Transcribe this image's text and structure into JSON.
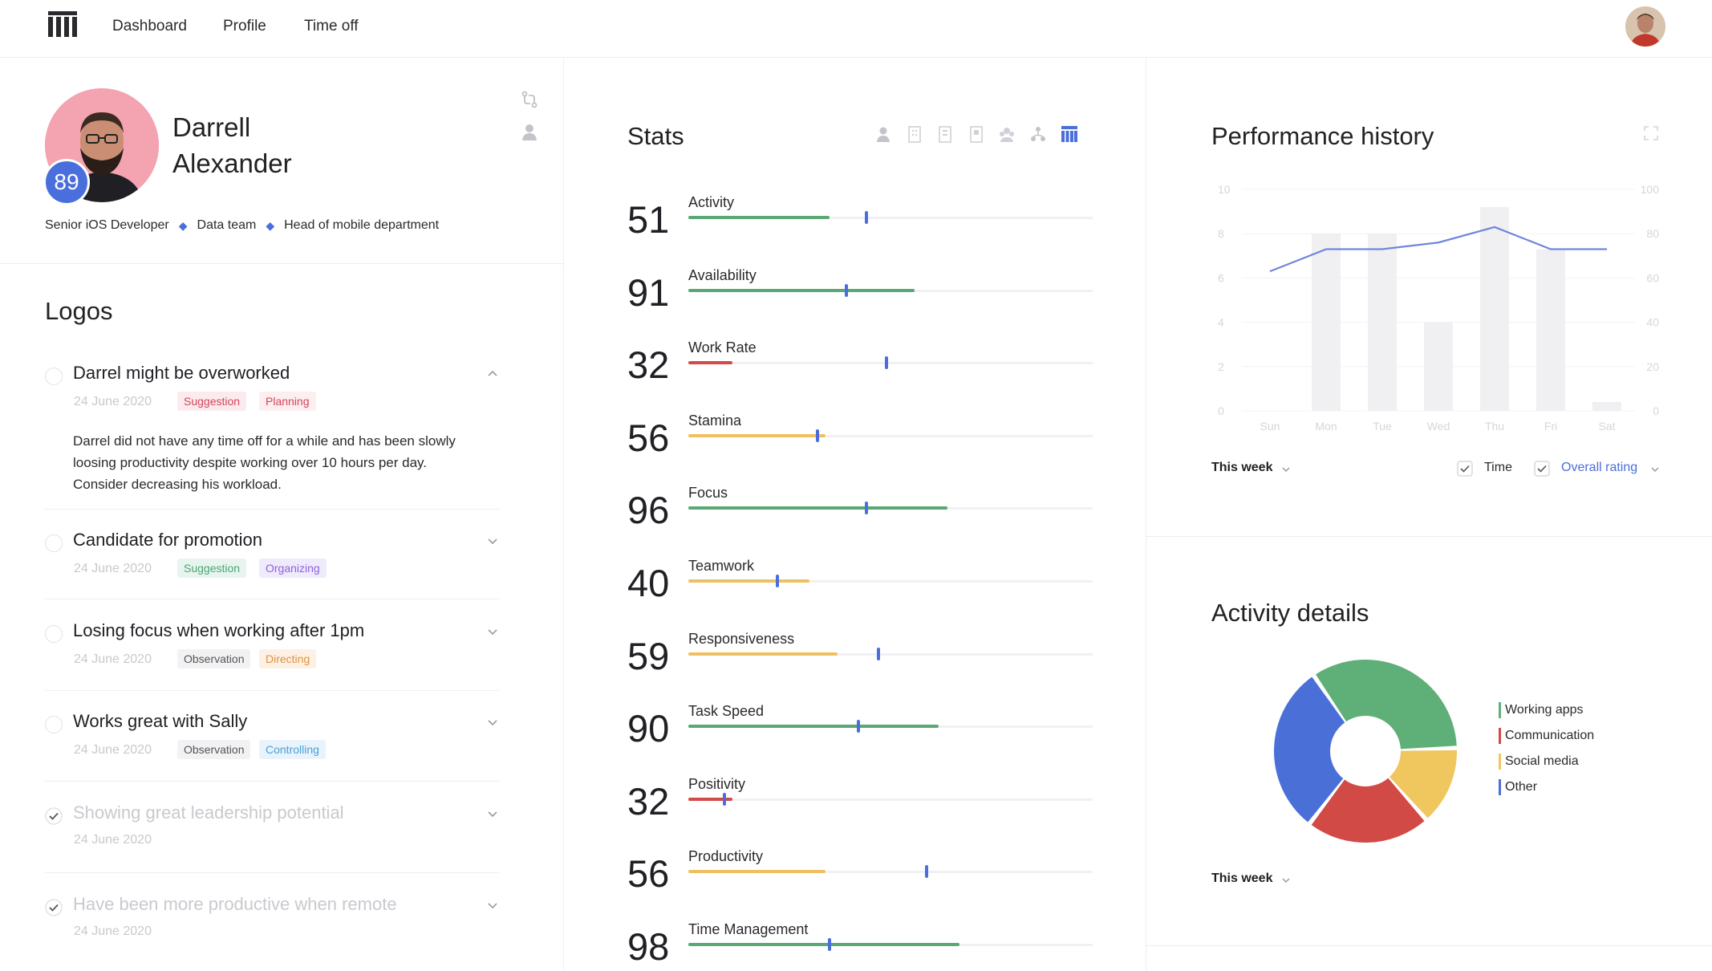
{
  "nav": {
    "items": [
      "Dashboard",
      "Profile",
      "Time off"
    ]
  },
  "profile": {
    "first_name": "Darrell",
    "last_name": "Alexander",
    "score": "89",
    "role": "Senior iOS Developer",
    "team": "Data team",
    "position": "Head of mobile department"
  },
  "logos": {
    "title": "Logos",
    "items": [
      {
        "title": "Darrel might be overworked",
        "date": "24 June 2020",
        "tags": [
          "Suggestion",
          "Planning"
        ],
        "body": "Darrel did not have any time off for a while and has been slowly loosing productivity despite working over 10 hours per day. Consider decreasing his workload.",
        "expanded": true,
        "done": false
      },
      {
        "title": "Candidate for promotion",
        "date": "24 June 2020",
        "tags": [
          "Suggestion",
          "Organizing"
        ],
        "done": false
      },
      {
        "title": "Losing focus when working after 1pm",
        "date": "24 June 2020",
        "tags": [
          "Observation",
          "Directing"
        ],
        "done": false
      },
      {
        "title": "Works great with Sally",
        "date": "24 June 2020",
        "tags": [
          "Observation",
          "Controlling"
        ],
        "done": false
      },
      {
        "title": "Showing great leadership potential",
        "date": "24 June 2020",
        "tags": [],
        "done": true
      },
      {
        "title": "Have been more productive when remote",
        "date": "24 June 2020",
        "tags": [],
        "done": true
      }
    ]
  },
  "stats": {
    "title": "Stats",
    "colors": {
      "green": "#5aa874",
      "red": "#d34b49",
      "yellow": "#efc062",
      "blue": "#4a6fdc"
    },
    "rows": [
      {
        "value": "51",
        "label": "Activity",
        "fill": 0.35,
        "marker": 0.44,
        "color": "green"
      },
      {
        "value": "91",
        "label": "Availability",
        "fill": 0.56,
        "marker": 0.39,
        "color": "green"
      },
      {
        "value": "32",
        "label": "Work Rate",
        "fill": 0.11,
        "marker": 0.49,
        "color": "red"
      },
      {
        "value": "56",
        "label": "Stamina",
        "fill": 0.34,
        "marker": 0.32,
        "color": "yellow"
      },
      {
        "value": "96",
        "label": "Focus",
        "fill": 0.64,
        "marker": 0.44,
        "color": "green"
      },
      {
        "value": "40",
        "label": "Teamwork",
        "fill": 0.3,
        "marker": 0.22,
        "color": "yellow"
      },
      {
        "value": "59",
        "label": "Responsiveness",
        "fill": 0.37,
        "marker": 0.47,
        "color": "yellow"
      },
      {
        "value": "90",
        "label": "Task Speed",
        "fill": 0.62,
        "marker": 0.42,
        "color": "green"
      },
      {
        "value": "32",
        "label": "Positivity",
        "fill": 0.11,
        "marker": 0.09,
        "color": "red"
      },
      {
        "value": "56",
        "label": "Productivity",
        "fill": 0.34,
        "marker": 0.59,
        "color": "yellow"
      },
      {
        "value": "98",
        "label": "Time Management",
        "fill": 0.67,
        "marker": 0.35,
        "color": "green"
      }
    ]
  },
  "performance": {
    "title": "Performance history",
    "period": "This week",
    "toggle_time": "Time",
    "toggle_rating": "Overall rating"
  },
  "chart_data": {
    "type": "bar",
    "categories": [
      "Sun",
      "Mon",
      "Tue",
      "Wed",
      "Thu",
      "Fri",
      "Sat"
    ],
    "series": [
      {
        "name": "Time",
        "values": [
          0,
          8,
          8,
          4,
          9.2,
          7.3,
          0.4
        ],
        "axis": "left"
      },
      {
        "name": "Overall rating",
        "values": [
          63,
          73,
          73,
          76,
          83,
          73,
          73
        ],
        "axis": "right",
        "render": "line"
      }
    ],
    "left_ticks": [
      "0",
      "2",
      "4",
      "6",
      "8",
      "10"
    ],
    "right_ticks": [
      "0",
      "20",
      "40",
      "60",
      "80",
      "100"
    ],
    "ylim_left": [
      0,
      10
    ],
    "ylim_right": [
      0,
      100
    ],
    "grid": true,
    "colors": {
      "bar": "#f0f0f2",
      "line": "#6f86dc"
    }
  },
  "activity": {
    "title": "Activity details",
    "period": "This week",
    "segments": [
      {
        "name": "Working apps",
        "value": 34,
        "color": "#5faf78"
      },
      {
        "name": "Social media",
        "value": 14,
        "color": "#f0c65f"
      },
      {
        "name": "Communication",
        "value": 22,
        "color": "#d14a46"
      },
      {
        "name": "Other",
        "value": 30,
        "color": "#4a70d8"
      }
    ],
    "legend": [
      {
        "name": "Working apps",
        "color": "#5faf78"
      },
      {
        "name": "Communication",
        "color": "#d14a46"
      },
      {
        "name": "Social media",
        "color": "#f0c65f"
      },
      {
        "name": "Other",
        "color": "#4a70d8"
      }
    ]
  }
}
